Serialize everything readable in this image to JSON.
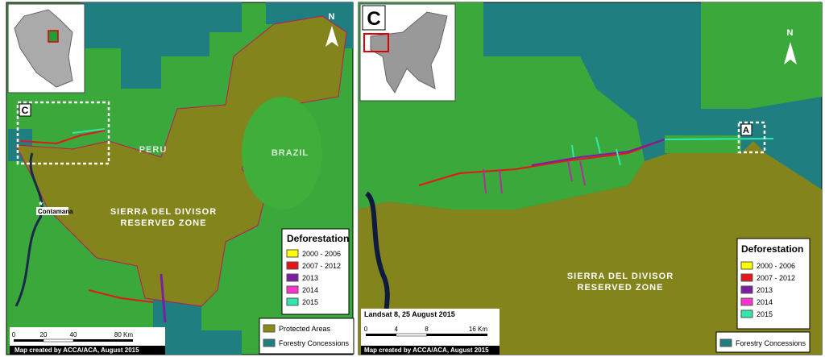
{
  "left_map": {
    "north": "N",
    "box_label": "C",
    "labels": {
      "peru": "PERU",
      "brazil": "BRAZIL",
      "zone_line1": "SIERRA DEL DIVISOR",
      "zone_line2": "RESERVED ZONE",
      "town": "Contamana"
    },
    "legend": {
      "title": "Deforestation",
      "items": [
        {
          "label": "2000 - 2006",
          "color": "#ffff00"
        },
        {
          "label": "2007 - 2012",
          "color": "#e8141b"
        },
        {
          "label": "2013",
          "color": "#7b1fa2"
        },
        {
          "label": "2014",
          "color": "#ff33cc"
        },
        {
          "label": "2015",
          "color": "#2ee8b0"
        }
      ]
    },
    "area_legend": [
      {
        "label": "Protected Areas",
        "color": "#8a8a14"
      },
      {
        "label": "Forestry Concessions",
        "color": "#1f7f80"
      }
    ],
    "scale": [
      "0",
      "20",
      "40",
      "80 Km"
    ],
    "credit": "Map created by ACCA/ACA, August 2015"
  },
  "right_map": {
    "panel_label": "C",
    "north": "N",
    "box_label": "A",
    "labels": {
      "zone_line1": "SIERRA DEL DIVISOR",
      "zone_line2": "RESERVED ZONE"
    },
    "legend": {
      "title": "Deforestation",
      "items": [
        {
          "label": "2000 - 2006",
          "color": "#ffff00"
        },
        {
          "label": "2007 - 2012",
          "color": "#e8141b"
        },
        {
          "label": "2013",
          "color": "#7b1fa2"
        },
        {
          "label": "2014",
          "color": "#ff33cc"
        },
        {
          "label": "2015",
          "color": "#2ee8b0"
        }
      ]
    },
    "area_legend": [
      {
        "label": "Forestry Concessions",
        "color": "#1f7f80"
      }
    ],
    "imagery": "Landsat 8, 25 August 2015",
    "scale": [
      "0",
      "4",
      "8",
      "16 Km"
    ],
    "credit": "Map created by ACCA/ACA, August 2015"
  }
}
